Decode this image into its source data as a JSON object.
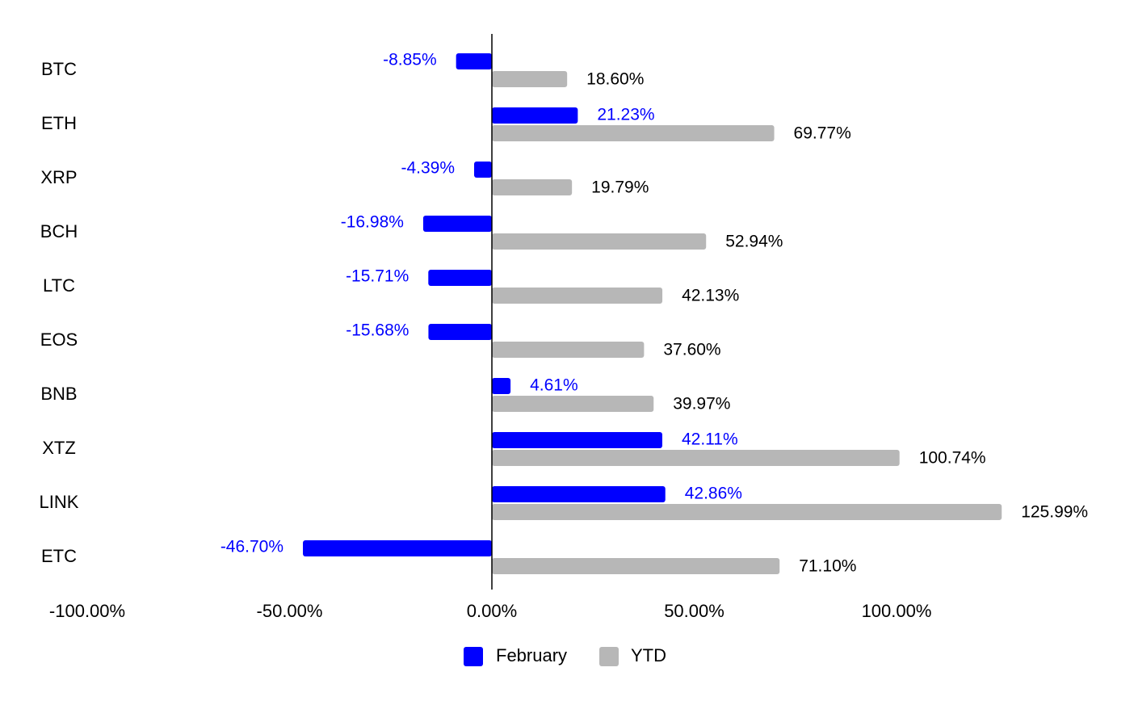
{
  "chart_data": {
    "type": "bar",
    "orientation": "horizontal",
    "categories": [
      "BTC",
      "ETH",
      "XRP",
      "BCH",
      "LTC",
      "EOS",
      "BNB",
      "XTZ",
      "LINK",
      "ETC"
    ],
    "series": [
      {
        "name": "February",
        "color": "#0000ff",
        "values": [
          -8.85,
          21.23,
          -4.39,
          -16.98,
          -15.71,
          -15.68,
          4.61,
          42.11,
          42.86,
          -46.7
        ],
        "labels": [
          "-8.85%",
          "21.23%",
          "-4.39%",
          "-16.98%",
          "-15.71%",
          "-15.68%",
          "4.61%",
          "42.11%",
          "42.86%",
          "-46.70%"
        ]
      },
      {
        "name": "YTD",
        "color": "#b7b7b7",
        "values": [
          18.6,
          69.77,
          19.79,
          52.94,
          42.13,
          37.6,
          39.97,
          100.74,
          125.99,
          71.1
        ],
        "labels": [
          "18.60%",
          "69.77%",
          "19.79%",
          "52.94%",
          "42.13%",
          "37.60%",
          "39.97%",
          "100.74%",
          "125.99%",
          "71.10%"
        ]
      }
    ],
    "xlim": [
      -100,
      125.99
    ],
    "xticks": [
      -100,
      -50,
      0,
      50,
      100
    ],
    "xtick_labels": [
      "-100.00%",
      "-50.00%",
      "0.00%",
      "50.00%",
      "100.00%"
    ],
    "grid": false,
    "legend": "bottom",
    "value_label_colors": {
      "February": "#0000ff",
      "YTD": "#000000"
    }
  }
}
